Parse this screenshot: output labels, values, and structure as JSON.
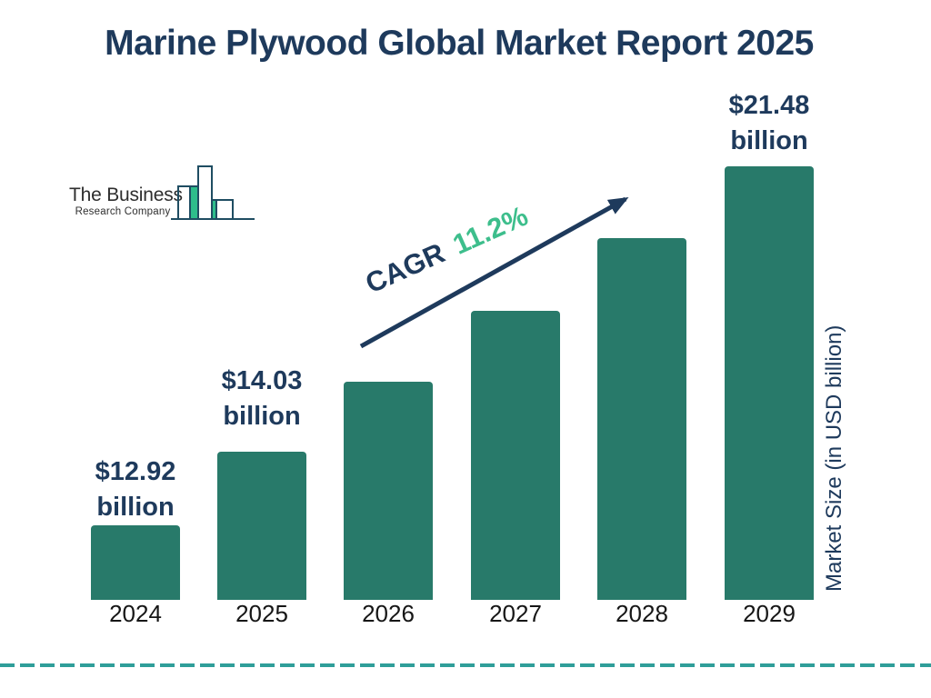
{
  "title": "Marine Plywood Global Market Report 2025",
  "logo": {
    "line1": "The Business",
    "line2": "Research Company"
  },
  "cagr": {
    "prefix": "CAGR",
    "value": "11.2%"
  },
  "chart_data": {
    "type": "bar",
    "title": "Marine Plywood Global Market Report 2025",
    "categories": [
      "2024",
      "2025",
      "2026",
      "2027",
      "2028",
      "2029"
    ],
    "values": [
      12.92,
      14.03,
      15.6,
      17.35,
      19.3,
      21.48
    ],
    "labeled_values": [
      12.92,
      14.03,
      null,
      null,
      null,
      21.48
    ],
    "value_labels": [
      [
        "$12.92",
        "billion"
      ],
      [
        "$14.03",
        "billion"
      ],
      null,
      null,
      null,
      [
        "$21.48",
        "billion"
      ]
    ],
    "cagr_annotation": "CAGR 11.2%",
    "xlabel": "",
    "ylabel": "Market Size (in USD billion)",
    "grid": false,
    "legend": false,
    "bar_color": "#287A6A"
  },
  "colors": {
    "navy": "#1E3A5C",
    "bar_teal": "#287A6A",
    "accent_green": "#3DBE8C",
    "dashed_line_teal": "#2F9E99",
    "year_label": "#161616",
    "logo_text": "#2E2E2E",
    "logo_outline": "#1F4D62",
    "logo_green": "#2EBD8B"
  }
}
